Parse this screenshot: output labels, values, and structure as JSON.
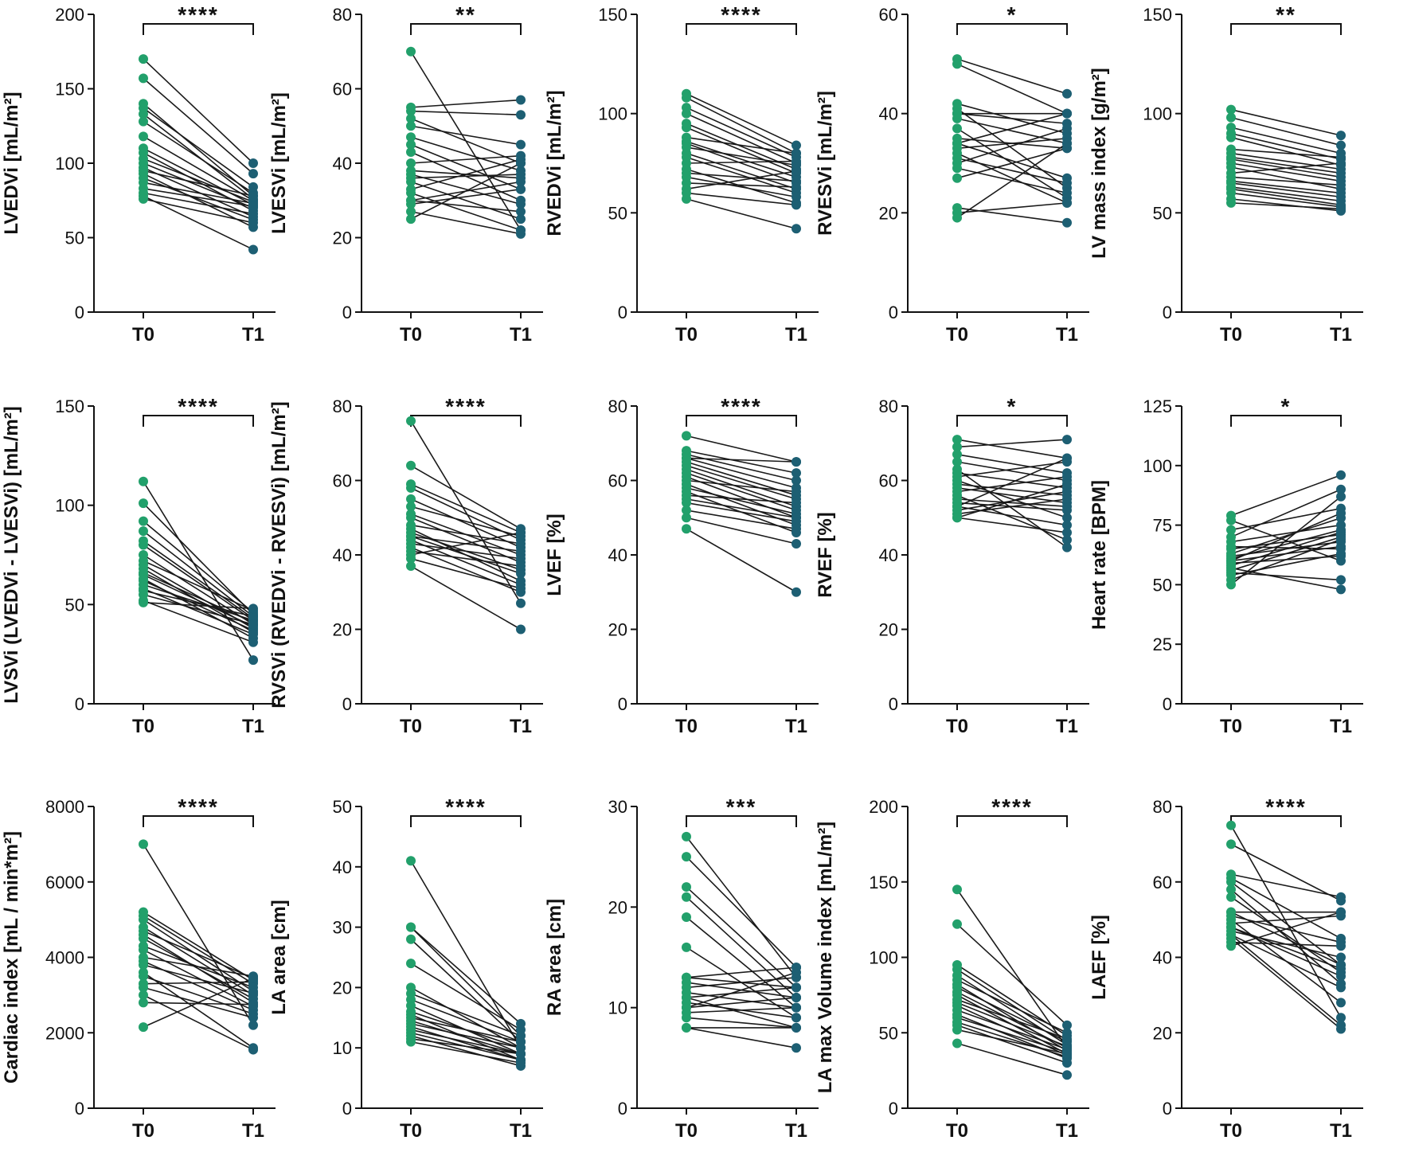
{
  "colors": {
    "t0": "#22a06b",
    "t1": "#1d5f73",
    "line": "#1a1a1a",
    "axis": "#111111"
  },
  "chart_data": [
    {
      "type": "scatter",
      "ylabel": "LVEDVi [mL/m²]",
      "categories": [
        "T0",
        "T1"
      ],
      "ylim": [
        0,
        200
      ],
      "yticks": [
        0,
        50,
        100,
        150,
        200
      ],
      "significance": "****",
      "pairs": [
        [
          170,
          100
        ],
        [
          157,
          93
        ],
        [
          140,
          78
        ],
        [
          137,
          84
        ],
        [
          133,
          76
        ],
        [
          128,
          80
        ],
        [
          118,
          75
        ],
        [
          110,
          72
        ],
        [
          107,
          68
        ],
        [
          103,
          74
        ],
        [
          100,
          70
        ],
        [
          97,
          64
        ],
        [
          95,
          78
        ],
        [
          93,
          57
        ],
        [
          90,
          62
        ],
        [
          87,
          73
        ],
        [
          83,
          71
        ],
        [
          80,
          66
        ],
        [
          78,
          42
        ],
        [
          76,
          60
        ]
      ]
    },
    {
      "type": "scatter",
      "ylabel": "LVESVi [mL/m²]",
      "categories": [
        "T0",
        "T1"
      ],
      "ylim": [
        0,
        80
      ],
      "yticks": [
        0,
        20,
        40,
        60,
        80
      ],
      "significance": "**",
      "pairs": [
        [
          70,
          22
        ],
        [
          55,
          57
        ],
        [
          54,
          53
        ],
        [
          52,
          40
        ],
        [
          50,
          45
        ],
        [
          47,
          38
        ],
        [
          45,
          33
        ],
        [
          43,
          30
        ],
        [
          40,
          42
        ],
        [
          38,
          36
        ],
        [
          37,
          29
        ],
        [
          36,
          37
        ],
        [
          35,
          25
        ],
        [
          33,
          41
        ],
        [
          32,
          22
        ],
        [
          30,
          35
        ],
        [
          30,
          27
        ],
        [
          29,
          33
        ],
        [
          27,
          21
        ],
        [
          25,
          40
        ]
      ]
    },
    {
      "type": "scatter",
      "ylabel": "RVEDVi [mL/m²]",
      "categories": [
        "T0",
        "T1"
      ],
      "ylim": [
        0,
        150
      ],
      "yticks": [
        0,
        50,
        100,
        150
      ],
      "significance": "****",
      "pairs": [
        [
          110,
          84
        ],
        [
          108,
          80
        ],
        [
          103,
          78
        ],
        [
          100,
          75
        ],
        [
          95,
          72
        ],
        [
          93,
          70
        ],
        [
          88,
          80
        ],
        [
          86,
          68
        ],
        [
          85,
          65
        ],
        [
          83,
          74
        ],
        [
          80,
          62
        ],
        [
          78,
          60
        ],
        [
          75,
          76
        ],
        [
          72,
          55
        ],
        [
          70,
          66
        ],
        [
          68,
          58
        ],
        [
          65,
          63
        ],
        [
          62,
          71
        ],
        [
          60,
          54
        ],
        [
          57,
          42
        ]
      ]
    },
    {
      "type": "scatter",
      "ylabel": "RVESVi [mL/m²]",
      "categories": [
        "T0",
        "T1"
      ],
      "ylim": [
        0,
        60
      ],
      "yticks": [
        0,
        20,
        40,
        60
      ],
      "significance": "*",
      "pairs": [
        [
          51,
          44
        ],
        [
          50,
          40
        ],
        [
          42,
          36
        ],
        [
          41,
          25
        ],
        [
          40,
          38
        ],
        [
          39,
          34
        ],
        [
          37,
          23
        ],
        [
          35,
          33
        ],
        [
          34,
          40
        ],
        [
          34,
          27
        ],
        [
          33,
          35
        ],
        [
          32,
          22
        ],
        [
          31,
          26
        ],
        [
          30,
          37
        ],
        [
          29,
          24
        ],
        [
          27,
          33
        ],
        [
          21,
          18
        ],
        [
          20,
          22
        ],
        [
          19,
          34
        ],
        [
          40,
          40
        ]
      ]
    },
    {
      "type": "scatter",
      "ylabel": "LV mass index [g/m²]",
      "categories": [
        "T0",
        "T1"
      ],
      "ylim": [
        0,
        150
      ],
      "yticks": [
        0,
        50,
        100,
        150
      ],
      "significance": "**",
      "pairs": [
        [
          102,
          89
        ],
        [
          98,
          84
        ],
        [
          93,
          80
        ],
        [
          90,
          77
        ],
        [
          88,
          74
        ],
        [
          82,
          78
        ],
        [
          80,
          72
        ],
        [
          78,
          70
        ],
        [
          77,
          68
        ],
        [
          75,
          66
        ],
        [
          73,
          62
        ],
        [
          70,
          75
        ],
        [
          68,
          64
        ],
        [
          66,
          60
        ],
        [
          65,
          58
        ],
        [
          63,
          56
        ],
        [
          62,
          54
        ],
        [
          60,
          53
        ],
        [
          57,
          51
        ],
        [
          55,
          52
        ]
      ]
    },
    {
      "type": "scatter",
      "ylabel": "LVSVi (LVEDVi - LVESVi) [mL/m²]",
      "categories": [
        "T0",
        "T1"
      ],
      "ylim": [
        0,
        150
      ],
      "yticks": [
        0,
        50,
        100,
        150
      ],
      "significance": "****",
      "pairs": [
        [
          112,
          22
        ],
        [
          101,
          45
        ],
        [
          92,
          46
        ],
        [
          87,
          44
        ],
        [
          82,
          43
        ],
        [
          80,
          42
        ],
        [
          75,
          40
        ],
        [
          72,
          47
        ],
        [
          70,
          38
        ],
        [
          68,
          36
        ],
        [
          66,
          41
        ],
        [
          65,
          39
        ],
        [
          63,
          33
        ],
        [
          62,
          37
        ],
        [
          60,
          42
        ],
        [
          58,
          35
        ],
        [
          57,
          44
        ],
        [
          55,
          40
        ],
        [
          52,
          31
        ],
        [
          51,
          48
        ]
      ]
    },
    {
      "type": "scatter",
      "ylabel": "RVSVi (RVEDVi - RVESVi) [mL/m²]",
      "categories": [
        "T0",
        "T1"
      ],
      "ylim": [
        0,
        80
      ],
      "yticks": [
        0,
        20,
        40,
        60,
        80
      ],
      "significance": "****",
      "pairs": [
        [
          76,
          27
        ],
        [
          64,
          47
        ],
        [
          59,
          46
        ],
        [
          58,
          44
        ],
        [
          55,
          42
        ],
        [
          53,
          45
        ],
        [
          51,
          40
        ],
        [
          50,
          38
        ],
        [
          48,
          43
        ],
        [
          46,
          36
        ],
        [
          45,
          35
        ],
        [
          45,
          41
        ],
        [
          44,
          32
        ],
        [
          43,
          39
        ],
        [
          42,
          30
        ],
        [
          41,
          37
        ],
        [
          40,
          46
        ],
        [
          39,
          31
        ],
        [
          37,
          20
        ],
        [
          47,
          33
        ]
      ]
    },
    {
      "type": "scatter",
      "ylabel": "LVEF [%]",
      "categories": [
        "T0",
        "T1"
      ],
      "ylim": [
        0,
        80
      ],
      "yticks": [
        0,
        20,
        40,
        60,
        80
      ],
      "significance": "****",
      "pairs": [
        [
          72,
          65
        ],
        [
          68,
          62
        ],
        [
          67,
          60
        ],
        [
          66,
          58
        ],
        [
          66,
          65
        ],
        [
          65,
          56
        ],
        [
          64,
          55
        ],
        [
          63,
          53
        ],
        [
          62,
          52
        ],
        [
          61,
          50
        ],
        [
          60,
          57
        ],
        [
          59,
          48
        ],
        [
          58,
          51
        ],
        [
          57,
          46
        ],
        [
          56,
          54
        ],
        [
          55,
          50
        ],
        [
          54,
          49
        ],
        [
          52,
          47
        ],
        [
          50,
          43
        ],
        [
          47,
          30
        ]
      ]
    },
    {
      "type": "scatter",
      "ylabel": "RVEF [%]",
      "categories": [
        "T0",
        "T1"
      ],
      "ylim": [
        0,
        80
      ],
      "yticks": [
        0,
        20,
        40,
        60,
        80
      ],
      "significance": "*",
      "pairs": [
        [
          71,
          66
        ],
        [
          69,
          71
        ],
        [
          67,
          62
        ],
        [
          65,
          60
        ],
        [
          63,
          42
        ],
        [
          62,
          58
        ],
        [
          61,
          65
        ],
        [
          60,
          50
        ],
        [
          59,
          56
        ],
        [
          58,
          54
        ],
        [
          57,
          61
        ],
        [
          56,
          44
        ],
        [
          55,
          53
        ],
        [
          54,
          52
        ],
        [
          53,
          66
        ],
        [
          53,
          48
        ],
        [
          52,
          57
        ],
        [
          51,
          55
        ],
        [
          50,
          46
        ],
        [
          50,
          59
        ]
      ]
    },
    {
      "type": "scatter",
      "ylabel": "Heart rate [BPM]",
      "categories": [
        "T0",
        "T1"
      ],
      "ylim": [
        0,
        125
      ],
      "yticks": [
        0,
        25,
        50,
        75,
        100,
        125
      ],
      "significance": "*",
      "pairs": [
        [
          79,
          96
        ],
        [
          77,
          60
        ],
        [
          73,
          82
        ],
        [
          70,
          90
        ],
        [
          68,
          75
        ],
        [
          66,
          65
        ],
        [
          65,
          71
        ],
        [
          63,
          78
        ],
        [
          62,
          68
        ],
        [
          61,
          73
        ],
        [
          60,
          66
        ],
        [
          60,
          80
        ],
        [
          59,
          62
        ],
        [
          58,
          72
        ],
        [
          57,
          48
        ],
        [
          56,
          70
        ],
        [
          55,
          52
        ],
        [
          54,
          63
        ],
        [
          52,
          69
        ],
        [
          50,
          87
        ]
      ]
    },
    {
      "type": "scatter",
      "ylabel": "Cardiac index [mL / min*m²]",
      "categories": [
        "T0",
        "T1"
      ],
      "ylim": [
        0,
        8000
      ],
      "yticks": [
        0,
        2000,
        4000,
        6000,
        8000
      ],
      "significance": "****",
      "pairs": [
        [
          7000,
          2200
        ],
        [
          5200,
          3400
        ],
        [
          5100,
          3300
        ],
        [
          5000,
          3100
        ],
        [
          4800,
          3000
        ],
        [
          4700,
          3450
        ],
        [
          4600,
          2800
        ],
        [
          4500,
          2900
        ],
        [
          4300,
          3200
        ],
        [
          4200,
          2700
        ],
        [
          4000,
          3500
        ],
        [
          3900,
          2600
        ],
        [
          3800,
          3050
        ],
        [
          3600,
          1600
        ],
        [
          3500,
          2500
        ],
        [
          3300,
          3350
        ],
        [
          3200,
          2400
        ],
        [
          3000,
          1550
        ],
        [
          2800,
          2750
        ],
        [
          2150,
          3450
        ]
      ]
    },
    {
      "type": "scatter",
      "ylabel": "LA area [cm]",
      "categories": [
        "T0",
        "T1"
      ],
      "ylim": [
        0,
        50
      ],
      "yticks": [
        0,
        10,
        20,
        30,
        40,
        50
      ],
      "significance": "****",
      "pairs": [
        [
          41,
          10
        ],
        [
          30,
          14
        ],
        [
          30,
          12
        ],
        [
          28,
          11
        ],
        [
          24,
          13
        ],
        [
          20,
          10
        ],
        [
          19,
          12
        ],
        [
          18,
          11
        ],
        [
          17,
          9
        ],
        [
          16,
          10
        ],
        [
          15.5,
          8
        ],
        [
          15,
          11
        ],
        [
          14.5,
          9
        ],
        [
          14,
          10
        ],
        [
          13.5,
          8
        ],
        [
          13,
          9
        ],
        [
          12.5,
          8
        ],
        [
          12,
          7
        ],
        [
          11.5,
          9
        ],
        [
          11,
          7.5
        ]
      ]
    },
    {
      "type": "scatter",
      "ylabel": "RA area [cm]",
      "categories": [
        "T0",
        "T1"
      ],
      "ylim": [
        0,
        30
      ],
      "yticks": [
        0,
        10,
        20,
        30
      ],
      "significance": "***",
      "pairs": [
        [
          27,
          13
        ],
        [
          25,
          14
        ],
        [
          22,
          12
        ],
        [
          21,
          11
        ],
        [
          19,
          10
        ],
        [
          16,
          9
        ],
        [
          13,
          14
        ],
        [
          13,
          12
        ],
        [
          12.5,
          11
        ],
        [
          12,
          13
        ],
        [
          11.5,
          10
        ],
        [
          11,
          8
        ],
        [
          11,
          12
        ],
        [
          10.5,
          9
        ],
        [
          10,
          11
        ],
        [
          10,
          13.5
        ],
        [
          9.5,
          10
        ],
        [
          9,
          8
        ],
        [
          8,
          8
        ],
        [
          8,
          6
        ]
      ]
    },
    {
      "type": "scatter",
      "ylabel": "LA max Volume index [mL/m²]",
      "categories": [
        "T0",
        "T1"
      ],
      "ylim": [
        0,
        200
      ],
      "yticks": [
        0,
        50,
        100,
        150,
        200
      ],
      "significance": "****",
      "pairs": [
        [
          145,
          40
        ],
        [
          122,
          55
        ],
        [
          95,
          48
        ],
        [
          92,
          45
        ],
        [
          88,
          42
        ],
        [
          85,
          50
        ],
        [
          82,
          38
        ],
        [
          80,
          44
        ],
        [
          77,
          40
        ],
        [
          75,
          36
        ],
        [
          72,
          46
        ],
        [
          70,
          41
        ],
        [
          68,
          35
        ],
        [
          65,
          39
        ],
        [
          62,
          33
        ],
        [
          60,
          37
        ],
        [
          57,
          34
        ],
        [
          55,
          30
        ],
        [
          52,
          36
        ],
        [
          43,
          22
        ]
      ]
    },
    {
      "type": "scatter",
      "ylabel": "LAEF [%]",
      "categories": [
        "T0",
        "T1"
      ],
      "ylim": [
        0,
        80
      ],
      "yticks": [
        0,
        20,
        40,
        60,
        80
      ],
      "significance": "****",
      "pairs": [
        [
          75,
          24
        ],
        [
          70,
          55
        ],
        [
          62,
          56
        ],
        [
          61,
          45
        ],
        [
          60,
          38
        ],
        [
          58,
          33
        ],
        [
          56,
          36
        ],
        [
          52,
          52
        ],
        [
          51,
          44
        ],
        [
          50,
          28
        ],
        [
          49,
          51
        ],
        [
          48,
          37
        ],
        [
          47,
          40
        ],
        [
          46,
          32
        ],
        [
          46,
          22
        ],
        [
          45,
          21
        ],
        [
          44,
          43
        ],
        [
          43,
          52
        ],
        [
          48,
          35
        ],
        [
          52,
          38
        ]
      ]
    }
  ]
}
